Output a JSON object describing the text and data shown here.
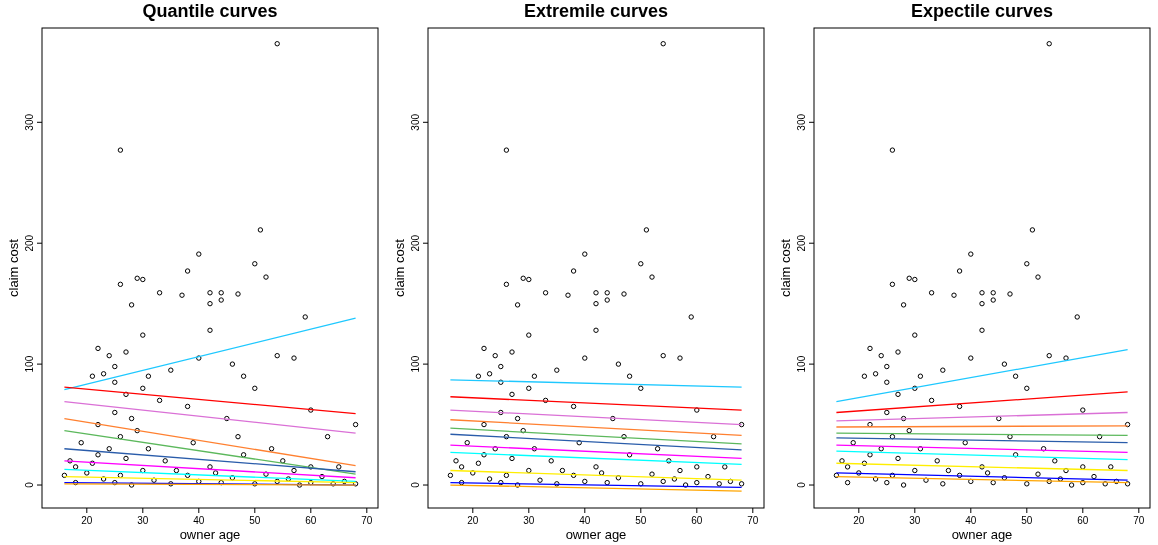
{
  "chart_data": [
    {
      "type": "scatter",
      "title": "Quantile  curves",
      "xlabel": "owner age",
      "ylabel": "claim cost",
      "xlim": [
        12,
        72
      ],
      "ylim": [
        -19,
        378
      ],
      "xticks": [
        20,
        30,
        40,
        50,
        60,
        70
      ],
      "yticks": [
        0,
        100,
        200,
        300
      ],
      "grid": false,
      "series": [
        {
          "marker": "circle",
          "color": "#000000",
          "x": [
            54,
            26,
            51,
            40,
            50,
            52,
            29,
            30,
            26,
            38,
            42,
            33,
            44,
            47,
            37,
            42,
            44,
            28,
            59,
            30,
            42,
            54,
            57,
            40,
            22,
            24,
            25,
            21,
            23,
            27,
            31,
            35,
            46,
            50,
            48,
            60,
            63,
            68,
            65,
            60,
            55,
            45,
            38,
            33,
            30,
            27,
            25,
            22,
            19,
            17,
            20,
            23,
            25,
            28,
            30,
            32,
            35,
            38,
            40,
            42,
            44,
            46,
            48,
            50,
            52,
            54,
            56,
            58,
            60,
            62,
            64,
            66,
            68,
            16,
            18,
            21,
            24,
            26,
            27,
            29,
            31,
            34,
            36,
            39,
            43,
            47,
            53,
            57,
            18,
            22,
            26,
            28,
            25
          ],
          "values": [
            365,
            277,
            211,
            191,
            183,
            172,
            171,
            170,
            166,
            177,
            159,
            159,
            159,
            158,
            157,
            150,
            153,
            149,
            139,
            124,
            128,
            107,
            105,
            105,
            113,
            107,
            98,
            90,
            92,
            110,
            90,
            95,
            100,
            80,
            90,
            62,
            40,
            50,
            15,
            15,
            20,
            55,
            65,
            70,
            80,
            75,
            60,
            50,
            35,
            20,
            10,
            5,
            2,
            0,
            12,
            4,
            1,
            8,
            3,
            15,
            2,
            6,
            25,
            1,
            9,
            3,
            5,
            0,
            2,
            7,
            1,
            3,
            1,
            8,
            2,
            18,
            30,
            40,
            22,
            45,
            30,
            20,
            12,
            35,
            10,
            40,
            30,
            12,
            15,
            25,
            8,
            55,
            85
          ]
        },
        {
          "type": "line",
          "color": "#1ec8ff",
          "x": [
            16,
            68
          ],
          "values": [
            79,
            138
          ]
        },
        {
          "type": "line",
          "color": "#ff0000",
          "x": [
            16,
            68
          ],
          "values": [
            81,
            59
          ]
        },
        {
          "type": "line",
          "color": "#da70d6",
          "x": [
            16,
            68
          ],
          "values": [
            69,
            43
          ]
        },
        {
          "type": "line",
          "color": "#ff8030",
          "x": [
            16,
            68
          ],
          "values": [
            55,
            16
          ]
        },
        {
          "type": "line",
          "color": "#5cb85c",
          "x": [
            16,
            68
          ],
          "values": [
            45,
            9
          ]
        },
        {
          "type": "line",
          "color": "#2a5caa",
          "x": [
            16,
            68
          ],
          "values": [
            30,
            11
          ]
        },
        {
          "type": "line",
          "color": "#ff00ff",
          "x": [
            16,
            68
          ],
          "values": [
            20,
            6
          ]
        },
        {
          "type": "line",
          "color": "#00ffff",
          "x": [
            16,
            68
          ],
          "values": [
            13,
            3
          ]
        },
        {
          "type": "line",
          "color": "#ffee00",
          "x": [
            16,
            68
          ],
          "values": [
            7,
            2
          ]
        },
        {
          "type": "line",
          "color": "#0000ff",
          "x": [
            16,
            68
          ],
          "values": [
            2,
            0
          ]
        },
        {
          "type": "line",
          "color": "#ffa500",
          "x": [
            16,
            68
          ],
          "values": [
            1,
            0
          ]
        }
      ]
    },
    {
      "type": "scatter",
      "title": "Extremile  curves",
      "xlabel": "owner age",
      "ylabel": "claim cost",
      "xlim": [
        12,
        72
      ],
      "ylim": [
        -19,
        378
      ],
      "xticks": [
        20,
        30,
        40,
        50,
        60,
        70
      ],
      "yticks": [
        0,
        100,
        200,
        300
      ],
      "grid": false,
      "series": [
        {
          "marker": "circle",
          "color": "#000000",
          "x": [
            54,
            26,
            51,
            40,
            50,
            52,
            29,
            30,
            26,
            38,
            42,
            33,
            44,
            47,
            37,
            42,
            44,
            28,
            59,
            30,
            42,
            54,
            57,
            40,
            22,
            24,
            25,
            21,
            23,
            27,
            31,
            35,
            46,
            50,
            48,
            60,
            63,
            68,
            65,
            60,
            55,
            45,
            38,
            33,
            30,
            27,
            25,
            22,
            19,
            17,
            20,
            23,
            25,
            28,
            30,
            32,
            35,
            38,
            40,
            42,
            44,
            46,
            48,
            50,
            52,
            54,
            56,
            58,
            60,
            62,
            64,
            66,
            68,
            16,
            18,
            21,
            24,
            26,
            27,
            29,
            31,
            34,
            36,
            39,
            43,
            47,
            53,
            57,
            18,
            22,
            26,
            28,
            25
          ],
          "values": [
            365,
            277,
            211,
            191,
            183,
            172,
            171,
            170,
            166,
            177,
            159,
            159,
            159,
            158,
            157,
            150,
            153,
            149,
            139,
            124,
            128,
            107,
            105,
            105,
            113,
            107,
            98,
            90,
            92,
            110,
            90,
            95,
            100,
            80,
            90,
            62,
            40,
            50,
            15,
            15,
            20,
            55,
            65,
            70,
            80,
            75,
            60,
            50,
            35,
            20,
            10,
            5,
            2,
            0,
            12,
            4,
            1,
            8,
            3,
            15,
            2,
            6,
            25,
            1,
            9,
            3,
            5,
            0,
            2,
            7,
            1,
            3,
            1,
            8,
            2,
            18,
            30,
            40,
            22,
            45,
            30,
            20,
            12,
            35,
            10,
            40,
            30,
            12,
            15,
            25,
            8,
            55,
            85
          ]
        },
        {
          "type": "line",
          "color": "#1ec8ff",
          "x": [
            16,
            68
          ],
          "values": [
            87,
            81
          ]
        },
        {
          "type": "line",
          "color": "#ff0000",
          "x": [
            16,
            68
          ],
          "values": [
            73,
            62
          ]
        },
        {
          "type": "line",
          "color": "#da70d6",
          "x": [
            16,
            68
          ],
          "values": [
            62,
            50
          ]
        },
        {
          "type": "line",
          "color": "#ff8030",
          "x": [
            16,
            68
          ],
          "values": [
            54,
            41
          ]
        },
        {
          "type": "line",
          "color": "#5cb85c",
          "x": [
            16,
            68
          ],
          "values": [
            47,
            34
          ]
        },
        {
          "type": "line",
          "color": "#2a5caa",
          "x": [
            16,
            68
          ],
          "values": [
            42,
            29
          ]
        },
        {
          "type": "line",
          "color": "#ff00ff",
          "x": [
            16,
            68
          ],
          "values": [
            33,
            22
          ]
        },
        {
          "type": "line",
          "color": "#00ffff",
          "x": [
            16,
            68
          ],
          "values": [
            27,
            17
          ]
        },
        {
          "type": "line",
          "color": "#ffee00",
          "x": [
            16,
            68
          ],
          "values": [
            12,
            4
          ]
        },
        {
          "type": "line",
          "color": "#0000ff",
          "x": [
            16,
            68
          ],
          "values": [
            2,
            -2
          ]
        },
        {
          "type": "line",
          "color": "#ffa500",
          "x": [
            16,
            68
          ],
          "values": [
            0,
            -5
          ]
        }
      ]
    },
    {
      "type": "scatter",
      "title": "Expectile  curves",
      "xlabel": "owner age",
      "ylabel": "claim cost",
      "xlim": [
        12,
        72
      ],
      "ylim": [
        -19,
        378
      ],
      "xticks": [
        20,
        30,
        40,
        50,
        60,
        70
      ],
      "yticks": [
        0,
        100,
        200,
        300
      ],
      "grid": false,
      "series": [
        {
          "marker": "circle",
          "color": "#000000",
          "x": [
            54,
            26,
            51,
            40,
            50,
            52,
            29,
            30,
            26,
            38,
            42,
            33,
            44,
            47,
            37,
            42,
            44,
            28,
            59,
            30,
            42,
            54,
            57,
            40,
            22,
            24,
            25,
            21,
            23,
            27,
            31,
            35,
            46,
            50,
            48,
            60,
            63,
            68,
            65,
            60,
            55,
            45,
            38,
            33,
            30,
            27,
            25,
            22,
            19,
            17,
            20,
            23,
            25,
            28,
            30,
            32,
            35,
            38,
            40,
            42,
            44,
            46,
            48,
            50,
            52,
            54,
            56,
            58,
            60,
            62,
            64,
            66,
            68,
            16,
            18,
            21,
            24,
            26,
            27,
            29,
            31,
            34,
            36,
            39,
            43,
            47,
            53,
            57,
            18,
            22,
            26,
            28,
            25
          ],
          "values": [
            365,
            277,
            211,
            191,
            183,
            172,
            171,
            170,
            166,
            177,
            159,
            159,
            159,
            158,
            157,
            150,
            153,
            149,
            139,
            124,
            128,
            107,
            105,
            105,
            113,
            107,
            98,
            90,
            92,
            110,
            90,
            95,
            100,
            80,
            90,
            62,
            40,
            50,
            15,
            15,
            20,
            55,
            65,
            70,
            80,
            75,
            60,
            50,
            35,
            20,
            10,
            5,
            2,
            0,
            12,
            4,
            1,
            8,
            3,
            15,
            2,
            6,
            25,
            1,
            9,
            3,
            5,
            0,
            2,
            7,
            1,
            3,
            1,
            8,
            2,
            18,
            30,
            40,
            22,
            45,
            30,
            20,
            12,
            35,
            10,
            40,
            30,
            12,
            15,
            25,
            8,
            55,
            85
          ]
        },
        {
          "type": "line",
          "color": "#1ec8ff",
          "x": [
            16,
            68
          ],
          "values": [
            69,
            112
          ]
        },
        {
          "type": "line",
          "color": "#ff0000",
          "x": [
            16,
            68
          ],
          "values": [
            60,
            77
          ]
        },
        {
          "type": "line",
          "color": "#da70d6",
          "x": [
            16,
            68
          ],
          "values": [
            53,
            60
          ]
        },
        {
          "type": "line",
          "color": "#ff8030",
          "x": [
            16,
            68
          ],
          "values": [
            48,
            49
          ]
        },
        {
          "type": "line",
          "color": "#5cb85c",
          "x": [
            16,
            68
          ],
          "values": [
            43,
            41
          ]
        },
        {
          "type": "line",
          "color": "#2a5caa",
          "x": [
            16,
            68
          ],
          "values": [
            39,
            35
          ]
        },
        {
          "type": "line",
          "color": "#ff00ff",
          "x": [
            16,
            68
          ],
          "values": [
            33,
            27
          ]
        },
        {
          "type": "line",
          "color": "#00ffff",
          "x": [
            16,
            68
          ],
          "values": [
            28,
            21
          ]
        },
        {
          "type": "line",
          "color": "#ffee00",
          "x": [
            16,
            68
          ],
          "values": [
            18,
            12
          ]
        },
        {
          "type": "line",
          "color": "#0000ff",
          "x": [
            16,
            68
          ],
          "values": [
            10,
            4
          ]
        },
        {
          "type": "line",
          "color": "#ffa500",
          "x": [
            16,
            68
          ],
          "values": [
            7,
            2
          ]
        }
      ]
    }
  ]
}
